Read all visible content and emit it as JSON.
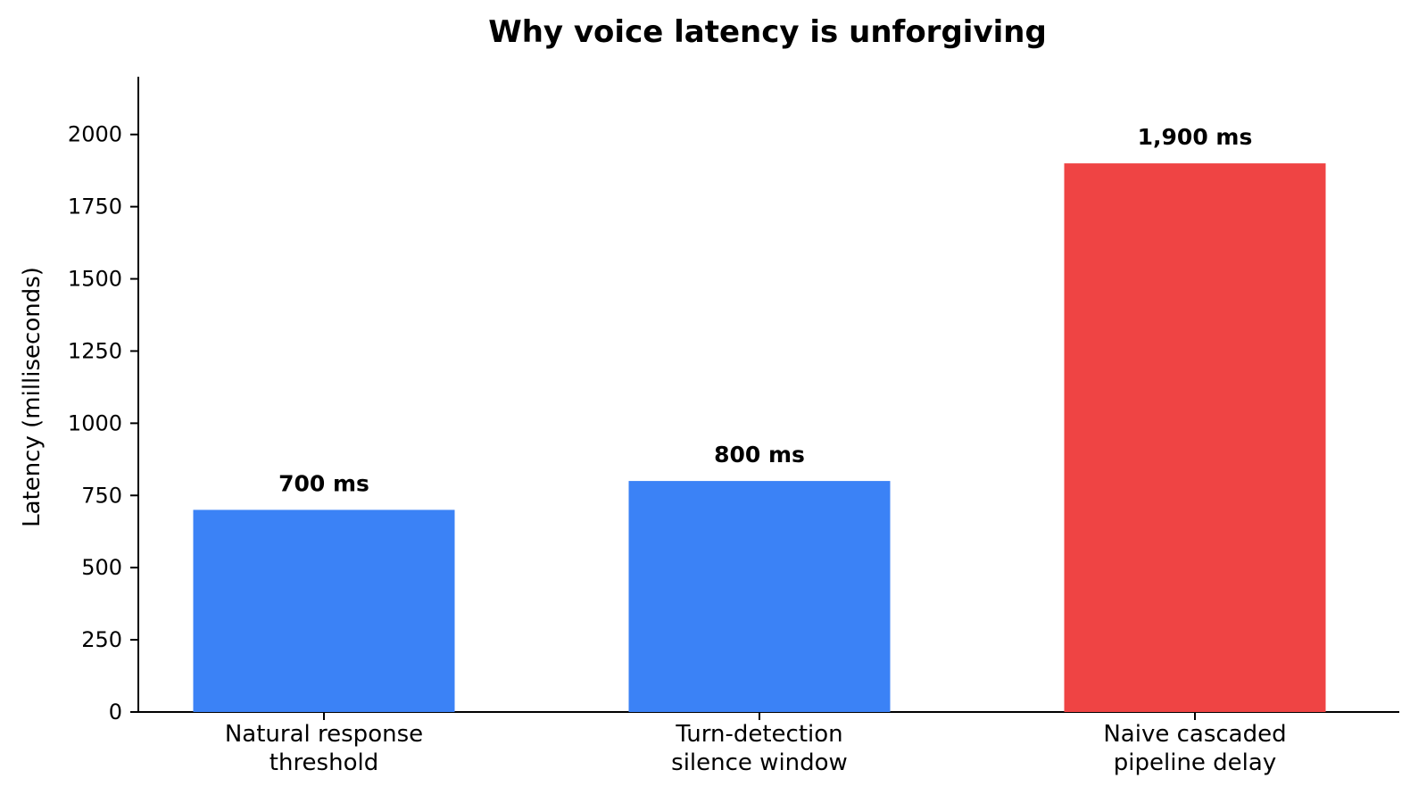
{
  "chart_data": {
    "type": "bar",
    "title": "Why voice latency is unforgiving",
    "ylabel": "Latency (milliseconds)",
    "xlabel": "",
    "ylim": [
      0,
      2200
    ],
    "yticks": [
      0,
      250,
      500,
      750,
      1000,
      1250,
      1500,
      1750,
      2000
    ],
    "grid": false,
    "categories": [
      [
        "Natural response",
        "threshold"
      ],
      [
        "Turn-detection",
        "silence window"
      ],
      [
        "Naive cascaded",
        "pipeline delay"
      ]
    ],
    "values": [
      700,
      800,
      1900
    ],
    "data_labels": [
      "700 ms",
      "800 ms",
      "1,900 ms"
    ],
    "colors": [
      "#3b82f6",
      "#3b82f6",
      "#ef4444"
    ]
  }
}
